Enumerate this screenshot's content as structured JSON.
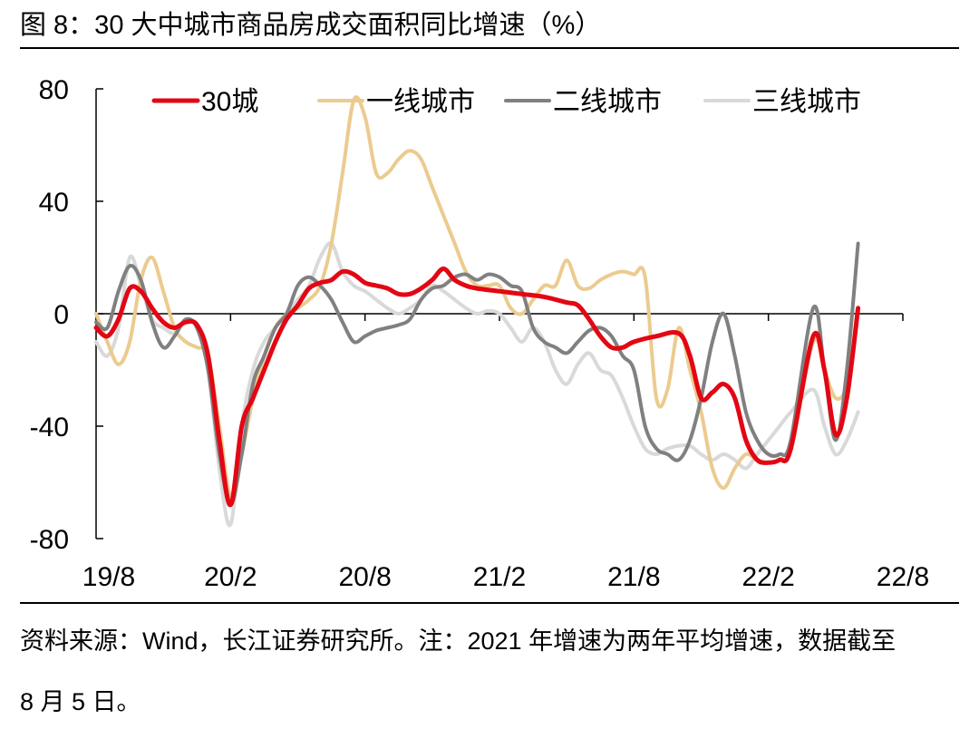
{
  "header": {
    "title": "图 8：30 大中城市商品房成交面积同比增速（%）"
  },
  "footer": {
    "source_line1": "资料来源：Wind，长江证券研究所。注：2021 年增速为两年平均增速，数据截至",
    "source_line2": "8 月 5 日。"
  },
  "chart_data": {
    "type": "line",
    "title": "30 大中城市商品房成交面积同比增速（%）",
    "xlabel": "",
    "ylabel": "",
    "ylim": [
      -80,
      80
    ],
    "yticks": [
      -80,
      -40,
      0,
      40,
      80
    ],
    "ytick_labels": [
      "-80",
      "-40",
      "0",
      "40",
      "80"
    ],
    "xlim": [
      0,
      36
    ],
    "xticks": [
      0,
      6,
      12,
      18,
      24,
      30,
      36
    ],
    "xtick_labels": [
      "19/8",
      "20/2",
      "20/8",
      "21/2",
      "21/8",
      "22/2",
      "22/8"
    ],
    "legend_position": "top",
    "grid": false,
    "series": [
      {
        "name": "30城",
        "color": "#e30613",
        "points": [
          [
            0,
            -5
          ],
          [
            0.5,
            -8
          ],
          [
            1,
            -2
          ],
          [
            1.5,
            9
          ],
          [
            2,
            8
          ],
          [
            2.5,
            2
          ],
          [
            3,
            -3
          ],
          [
            3.5,
            -5
          ],
          [
            4,
            -3
          ],
          [
            4.5,
            -4
          ],
          [
            5,
            -15
          ],
          [
            5.5,
            -45
          ],
          [
            6,
            -68
          ],
          [
            6.5,
            -40
          ],
          [
            7,
            -30
          ],
          [
            7.5,
            -20
          ],
          [
            8,
            -10
          ],
          [
            8.5,
            -2
          ],
          [
            9,
            3
          ],
          [
            9.5,
            9
          ],
          [
            10,
            11
          ],
          [
            10.5,
            12
          ],
          [
            11,
            15
          ],
          [
            11.5,
            14
          ],
          [
            12,
            11
          ],
          [
            12.5,
            10
          ],
          [
            13,
            9
          ],
          [
            13.5,
            7
          ],
          [
            14,
            7
          ],
          [
            14.5,
            9
          ],
          [
            15,
            12
          ],
          [
            15.5,
            16
          ],
          [
            16,
            12
          ],
          [
            16.5,
            10
          ],
          [
            17,
            9
          ],
          [
            18,
            8
          ],
          [
            19,
            7
          ],
          [
            20,
            6
          ],
          [
            21,
            4
          ],
          [
            21.5,
            3
          ],
          [
            22,
            -2
          ],
          [
            22.5,
            -8
          ],
          [
            23,
            -12
          ],
          [
            23.5,
            -12
          ],
          [
            24,
            -10
          ],
          [
            25,
            -8
          ],
          [
            26,
            -7
          ],
          [
            26.5,
            -15
          ],
          [
            27,
            -30
          ],
          [
            27.5,
            -28
          ],
          [
            28,
            -25
          ],
          [
            28.5,
            -30
          ],
          [
            29,
            -45
          ],
          [
            29.5,
            -52
          ],
          [
            30,
            -53
          ],
          [
            30.5,
            -52
          ],
          [
            31,
            -48
          ],
          [
            32,
            -8
          ],
          [
            32.5,
            -20
          ],
          [
            33,
            -43
          ],
          [
            33.5,
            -30
          ],
          [
            34,
            2
          ]
        ]
      },
      {
        "name": "一线城市",
        "color": "#ebcb8f",
        "points": [
          [
            0,
            0
          ],
          [
            0.5,
            -10
          ],
          [
            1,
            -18
          ],
          [
            1.5,
            -10
          ],
          [
            2,
            12
          ],
          [
            2.5,
            20
          ],
          [
            3,
            8
          ],
          [
            3.5,
            -5
          ],
          [
            4,
            -10
          ],
          [
            4.5,
            -12
          ],
          [
            5,
            -15
          ],
          [
            5.5,
            -40
          ],
          [
            6,
            -65
          ],
          [
            6.5,
            -50
          ],
          [
            7,
            -30
          ],
          [
            7.5,
            -15
          ],
          [
            8,
            -5
          ],
          [
            8.5,
            0
          ],
          [
            9,
            2
          ],
          [
            9.5,
            5
          ],
          [
            10,
            10
          ],
          [
            10.5,
            25
          ],
          [
            11,
            50
          ],
          [
            11.5,
            76
          ],
          [
            12,
            70
          ],
          [
            12.5,
            50
          ],
          [
            13,
            50
          ],
          [
            13.5,
            55
          ],
          [
            14,
            58
          ],
          [
            14.5,
            55
          ],
          [
            15,
            45
          ],
          [
            15.5,
            35
          ],
          [
            16,
            25
          ],
          [
            16.5,
            15
          ],
          [
            17,
            10
          ],
          [
            17.5,
            10
          ],
          [
            18,
            10
          ],
          [
            18.5,
            2
          ],
          [
            19,
            0
          ],
          [
            19.5,
            5
          ],
          [
            20,
            10
          ],
          [
            20.5,
            10
          ],
          [
            21,
            19
          ],
          [
            21.5,
            10
          ],
          [
            22,
            9
          ],
          [
            22.5,
            12
          ],
          [
            23,
            14
          ],
          [
            23.5,
            15
          ],
          [
            24,
            14
          ],
          [
            24.5,
            13
          ],
          [
            25,
            -30
          ],
          [
            25.5,
            -27
          ],
          [
            26,
            -5
          ],
          [
            26.5,
            -20
          ],
          [
            27,
            -35
          ],
          [
            27.5,
            -55
          ],
          [
            28,
            -62
          ],
          [
            28.5,
            -55
          ],
          [
            29,
            -50
          ],
          [
            29.5,
            -52
          ],
          [
            30,
            -53
          ],
          [
            30.5,
            -52
          ],
          [
            31,
            -48
          ],
          [
            32,
            -10
          ],
          [
            32.5,
            -20
          ],
          [
            33,
            -30
          ],
          [
            33.5,
            -25
          ],
          [
            34,
            2
          ]
        ]
      },
      {
        "name": "二线城市",
        "color": "#808080",
        "points": [
          [
            0,
            -3
          ],
          [
            0.5,
            -5
          ],
          [
            1,
            8
          ],
          [
            1.5,
            17
          ],
          [
            2,
            12
          ],
          [
            2.5,
            -3
          ],
          [
            3,
            -12
          ],
          [
            3.5,
            -8
          ],
          [
            4,
            -2
          ],
          [
            4.5,
            -5
          ],
          [
            5,
            -20
          ],
          [
            5.5,
            -50
          ],
          [
            6,
            -68
          ],
          [
            6.5,
            -50
          ],
          [
            7,
            -25
          ],
          [
            7.5,
            -15
          ],
          [
            8,
            -5
          ],
          [
            8.5,
            0
          ],
          [
            9,
            10
          ],
          [
            9.5,
            13
          ],
          [
            10,
            10
          ],
          [
            10.5,
            5
          ],
          [
            11,
            -3
          ],
          [
            11.5,
            -10
          ],
          [
            12,
            -8
          ],
          [
            12.5,
            -6
          ],
          [
            13,
            -5
          ],
          [
            13.5,
            -4
          ],
          [
            14,
            -2
          ],
          [
            14.5,
            5
          ],
          [
            15,
            9
          ],
          [
            15.5,
            10
          ],
          [
            16,
            13
          ],
          [
            16.5,
            14
          ],
          [
            17,
            12
          ],
          [
            17.5,
            14
          ],
          [
            18,
            13
          ],
          [
            18.5,
            10
          ],
          [
            19,
            8
          ],
          [
            19.5,
            -5
          ],
          [
            20,
            -10
          ],
          [
            20.5,
            -12
          ],
          [
            21,
            -14
          ],
          [
            21.5,
            -10
          ],
          [
            22,
            -6
          ],
          [
            22.5,
            -5
          ],
          [
            23,
            -8
          ],
          [
            23.5,
            -15
          ],
          [
            24,
            -20
          ],
          [
            24.5,
            -40
          ],
          [
            25,
            -48
          ],
          [
            25.5,
            -50
          ],
          [
            26,
            -52
          ],
          [
            26.5,
            -45
          ],
          [
            27,
            -30
          ],
          [
            27.5,
            -10
          ],
          [
            28,
            0
          ],
          [
            28.5,
            -15
          ],
          [
            29,
            -35
          ],
          [
            29.5,
            -45
          ],
          [
            30,
            -50
          ],
          [
            30.5,
            -50
          ],
          [
            31,
            -45
          ],
          [
            32,
            2
          ],
          [
            32.5,
            -20
          ],
          [
            33,
            -45
          ],
          [
            33.5,
            -20
          ],
          [
            34,
            25
          ]
        ]
      },
      {
        "name": "三线城市",
        "color": "#d9d9d9",
        "points": [
          [
            0,
            -10
          ],
          [
            0.5,
            -15
          ],
          [
            1,
            -5
          ],
          [
            1.5,
            20
          ],
          [
            2,
            10
          ],
          [
            2.5,
            -2
          ],
          [
            3,
            -5
          ],
          [
            3.5,
            -7
          ],
          [
            4,
            -3
          ],
          [
            4.5,
            -5
          ],
          [
            5,
            -20
          ],
          [
            5.5,
            -55
          ],
          [
            6,
            -75
          ],
          [
            6.5,
            -40
          ],
          [
            7,
            -20
          ],
          [
            7.5,
            -10
          ],
          [
            8,
            -5
          ],
          [
            8.5,
            0
          ],
          [
            9,
            5
          ],
          [
            9.5,
            10
          ],
          [
            10,
            20
          ],
          [
            10.5,
            25
          ],
          [
            11,
            15
          ],
          [
            11.5,
            10
          ],
          [
            12,
            8
          ],
          [
            12.5,
            5
          ],
          [
            13,
            2
          ],
          [
            13.5,
            0
          ],
          [
            14,
            2
          ],
          [
            14.5,
            5
          ],
          [
            15,
            10
          ],
          [
            15.5,
            8
          ],
          [
            16,
            5
          ],
          [
            16.5,
            2
          ],
          [
            17,
            0
          ],
          [
            17.5,
            1
          ],
          [
            18,
            0
          ],
          [
            18.5,
            -5
          ],
          [
            19,
            -10
          ],
          [
            19.5,
            -5
          ],
          [
            20,
            -10
          ],
          [
            20.5,
            -20
          ],
          [
            21,
            -25
          ],
          [
            21.5,
            -18
          ],
          [
            22,
            -14
          ],
          [
            22.5,
            -20
          ],
          [
            23,
            -22
          ],
          [
            23.5,
            -30
          ],
          [
            24,
            -40
          ],
          [
            24.5,
            -48
          ],
          [
            25,
            -50
          ],
          [
            25.5,
            -48
          ],
          [
            26,
            -47
          ],
          [
            26.5,
            -47
          ],
          [
            27,
            -50
          ],
          [
            27.5,
            -52
          ],
          [
            28,
            -50
          ],
          [
            28.5,
            -52
          ],
          [
            29,
            -55
          ],
          [
            29.5,
            -50
          ],
          [
            30,
            -45
          ],
          [
            30.5,
            -40
          ],
          [
            31,
            -35
          ],
          [
            32,
            -27
          ],
          [
            32.5,
            -40
          ],
          [
            33,
            -50
          ],
          [
            33.5,
            -45
          ],
          [
            34,
            -35
          ]
        ]
      }
    ]
  }
}
